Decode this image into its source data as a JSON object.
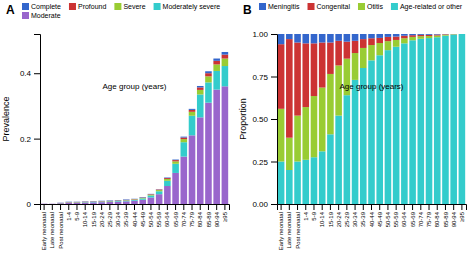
{
  "chart_data": [
    {
      "type": "bar",
      "title": "A",
      "stacked": true,
      "legend": "top",
      "grid": false,
      "xlabel": "Age group (years)",
      "ylabel": "Prevalence",
      "categories": [
        "Early neonatal",
        "Late neonatal",
        "Post neonatal",
        "1-4",
        "5-9",
        "10-14",
        "15-19",
        "20-24",
        "25-29",
        "30-34",
        "35-39",
        "40-44",
        "45-49",
        "50-54",
        "55-59",
        "60-64",
        "65-69",
        "70-74",
        "75-79",
        "80-84",
        "85-89",
        "90-94",
        "≥95"
      ],
      "series": [
        {
          "name": "Moderate",
          "color": "#9966cc",
          "values": [
            0.001,
            0.0008,
            0.002,
            0.004,
            0.004,
            0.0045,
            0.005,
            0.0055,
            0.006,
            0.007,
            0.008,
            0.01,
            0.013,
            0.02,
            0.03,
            0.055,
            0.095,
            0.145,
            0.21,
            0.265,
            0.31,
            0.35,
            0.36
          ]
        },
        {
          "name": "Moderately severe",
          "color": "#33cccc",
          "values": [
            0.0,
            0.0,
            0.0005,
            0.0008,
            0.001,
            0.001,
            0.0012,
            0.0015,
            0.0018,
            0.002,
            0.0025,
            0.003,
            0.004,
            0.006,
            0.009,
            0.016,
            0.028,
            0.044,
            0.06,
            0.07,
            0.062,
            0.057,
            0.062
          ]
        },
        {
          "name": "Severe",
          "color": "#99cc33",
          "values": [
            0.0,
            0.0,
            0.0003,
            0.0005,
            0.0006,
            0.0007,
            0.0008,
            0.0009,
            0.0009,
            0.001,
            0.0011,
            0.0012,
            0.0015,
            0.0025,
            0.0035,
            0.0055,
            0.0075,
            0.0095,
            0.012,
            0.014,
            0.0185,
            0.02,
            0.023
          ]
        },
        {
          "name": "Profound",
          "color": "#cc3333",
          "values": [
            0.0,
            0.0,
            0.0005,
            0.0007,
            0.0007,
            0.0008,
            0.0008,
            0.0009,
            0.0009,
            0.001,
            0.001,
            0.0011,
            0.0012,
            0.0015,
            0.0018,
            0.0028,
            0.0038,
            0.0048,
            0.0058,
            0.0076,
            0.0096,
            0.011,
            0.012
          ]
        },
        {
          "name": "Complete",
          "color": "#3366cc",
          "values": [
            0.0,
            0.0,
            0.0007,
            0.001,
            0.0007,
            0.001,
            0.001,
            0.0011,
            0.0013,
            0.001,
            0.0014,
            0.0007,
            0.0013,
            0.001,
            0.0007,
            0.0017,
            0.0017,
            0.0027,
            0.0032,
            0.0044,
            0.0059,
            0.007,
            0.008
          ]
        }
      ],
      "ylim": [
        0,
        0.52
      ],
      "yticks": [
        0,
        0.2,
        0.4
      ]
    },
    {
      "type": "bar",
      "title": "B",
      "stacked": true,
      "legend": "top",
      "grid": false,
      "xlabel": "Age group (years)",
      "ylabel": "Proportion",
      "categories": [
        "Early neonatal",
        "Late neonatal",
        "Post neonatal",
        "1-4",
        "5-9",
        "10-14",
        "15-19",
        "20-24",
        "25-29",
        "30-34",
        "35-39",
        "40-44",
        "45-49",
        "50-54",
        "55-59",
        "60-64",
        "65-69",
        "70-74",
        "75-79",
        "80-84",
        "85-89",
        "90-94",
        "≥95"
      ],
      "series": [
        {
          "name": "Age-related or other",
          "color": "#33cccc",
          "values": [
            0.25,
            0.2,
            0.25,
            0.26,
            0.275,
            0.31,
            0.41,
            0.52,
            0.64,
            0.73,
            0.8,
            0.845,
            0.875,
            0.905,
            0.925,
            0.945,
            0.963,
            0.972,
            0.976,
            0.981,
            0.99,
            0.997,
            1.0
          ]
        },
        {
          "name": "Otitis",
          "color": "#99cc33",
          "values": [
            0.31,
            0.19,
            0.27,
            0.31,
            0.36,
            0.375,
            0.355,
            0.295,
            0.215,
            0.158,
            0.118,
            0.09,
            0.072,
            0.053,
            0.04,
            0.03,
            0.02,
            0.015,
            0.012,
            0.01,
            0.006,
            0.002,
            0.0
          ]
        },
        {
          "name": "Congenital",
          "color": "#cc3333",
          "values": [
            0.38,
            0.58,
            0.43,
            0.375,
            0.31,
            0.265,
            0.185,
            0.145,
            0.1,
            0.072,
            0.052,
            0.04,
            0.03,
            0.025,
            0.02,
            0.015,
            0.01,
            0.008,
            0.007,
            0.006,
            0.003,
            0.001,
            0.0
          ]
        },
        {
          "name": "Meningitis",
          "color": "#3366cc",
          "values": [
            0.06,
            0.03,
            0.05,
            0.055,
            0.055,
            0.05,
            0.05,
            0.04,
            0.045,
            0.04,
            0.03,
            0.025,
            0.023,
            0.017,
            0.015,
            0.01,
            0.007,
            0.005,
            0.005,
            0.003,
            0.001,
            0.0,
            0.0
          ]
        }
      ],
      "ylim": [
        0,
        1.0
      ],
      "yticks": [
        {
          "value": 0,
          "label": "0.00"
        },
        {
          "value": 0.25,
          "label": "0.25"
        },
        {
          "value": 0.5,
          "label": "0.50"
        },
        {
          "value": 0.75,
          "label": "0.75"
        },
        {
          "value": 1.0,
          "label": "1.00"
        }
      ]
    }
  ]
}
